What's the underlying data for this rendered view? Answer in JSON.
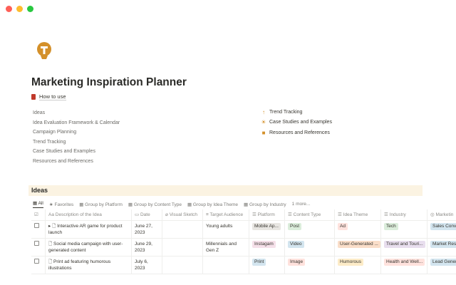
{
  "window": {
    "controls": [
      "close",
      "minimize",
      "maximize"
    ]
  },
  "page": {
    "icon": "lightbulb-icon",
    "title": "Marketing Inspiration Planner",
    "how_to_use": "How to use"
  },
  "left_links": [
    "Ideas",
    "Idea Evaluation Framework & Calendar",
    "Campaign Planning",
    "Trend Tracking",
    "Case Studies and Examples",
    "Resources and References"
  ],
  "right_links": [
    {
      "icon": "arrow-up-icon",
      "glyph": "↑",
      "label": "Trend Tracking"
    },
    {
      "icon": "sun-icon",
      "glyph": "☀",
      "label": "Case Studies and Examples"
    },
    {
      "icon": "note-icon",
      "glyph": "■",
      "label": "Resources and References"
    }
  ],
  "database": {
    "title": "Ideas",
    "tabs": [
      "All",
      "Favorites",
      "Group by Platform",
      "Group by Content Type",
      "Group by Idea Theme",
      "Group by Industry",
      "1 more..."
    ],
    "columns": [
      "Description of the Idea",
      "Date",
      "Visual Sketch",
      "Target Audience",
      "Platform",
      "Content Type",
      "Idea Theme",
      "Industry",
      "Marketin"
    ],
    "rows": [
      {
        "desc": "Interactive AR game for product launch",
        "date": "June 27, 2023",
        "sketch": "",
        "audience": "Young adults",
        "platform": "Mobile Ap...",
        "content": "Post",
        "theme": "Ad",
        "industry": "Tech",
        "marketing": "Sales Conv"
      },
      {
        "desc": "Social media campaign with user-generated content",
        "date": "June 29, 2023",
        "sketch": "",
        "audience": "Millennials and Gen Z",
        "platform": "Instagam",
        "content": "Video",
        "theme": "User-Generated ...",
        "industry": "Travel and Touri...",
        "marketing": "Market Res"
      },
      {
        "desc": "Print ad featuring humorous illustrations",
        "date": "July 6, 2023",
        "sketch": "",
        "audience": "",
        "platform": "Print",
        "content": "Image",
        "theme": "Humorous",
        "industry": "Health and Well...",
        "marketing": "Lead Gener"
      }
    ]
  },
  "colors": {
    "accent": "#d4902a",
    "banner": "#fbf3e2",
    "gray": "#e8e6e2",
    "green": "#dbeddb",
    "pink": "#f5e0e9",
    "blue": "#d3e5ef",
    "red": "#ffe2dd",
    "orange": "#fadec9",
    "yellow": "#fdecc8",
    "purple": "#e8deee"
  }
}
